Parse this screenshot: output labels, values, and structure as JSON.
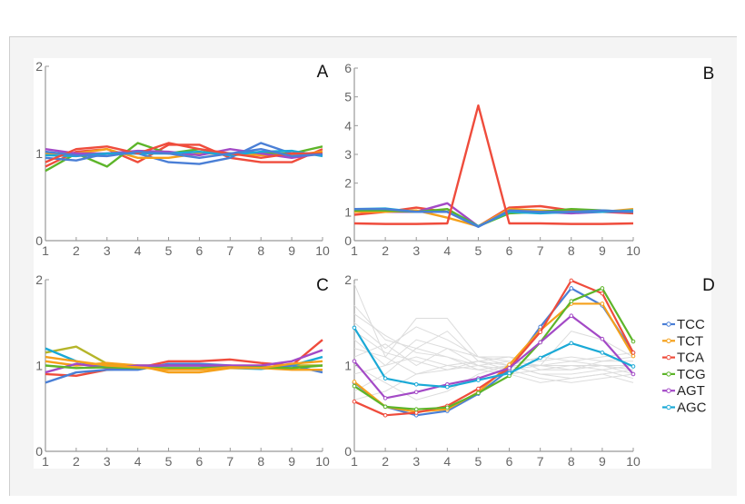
{
  "chart_data": [
    {
      "type": "line",
      "panel_label": "A",
      "x": [
        1,
        2,
        3,
        4,
        5,
        6,
        7,
        8,
        9,
        10
      ],
      "ylim": [
        0,
        2
      ],
      "yticks": [
        0,
        1,
        2
      ],
      "grid": false,
      "series": [
        {
          "color": "#ef4c3c",
          "values": [
            0.85,
            1.02,
            1.05,
            0.9,
            1.1,
            1.1,
            0.95,
            0.9,
            0.9,
            1.05
          ]
        },
        {
          "color": "#5db52a",
          "values": [
            0.8,
            1.0,
            0.85,
            1.12,
            1.0,
            1.05,
            0.98,
            1.0,
            1.0,
            1.08
          ]
        },
        {
          "color": "#4a7fd6",
          "values": [
            0.95,
            0.92,
            1.0,
            1.0,
            0.9,
            0.88,
            0.95,
            1.12,
            1.0,
            1.0
          ]
        },
        {
          "color": "#f5a01a",
          "values": [
            1.0,
            1.0,
            1.05,
            0.95,
            0.95,
            1.0,
            1.0,
            0.98,
            0.98,
            1.02
          ]
        },
        {
          "color": "#a349c6",
          "values": [
            1.05,
            1.0,
            1.0,
            1.03,
            1.02,
            0.98,
            1.05,
            1.0,
            0.95,
            1.0
          ]
        },
        {
          "color": "#1aa9d6",
          "values": [
            0.98,
            0.97,
            1.0,
            1.0,
            1.0,
            1.02,
            0.98,
            1.02,
            1.03,
            0.97
          ]
        },
        {
          "color": "#ef4c3c",
          "values": [
            0.9,
            1.05,
            1.08,
            1.0,
            1.12,
            1.05,
            1.0,
            0.95,
            1.0,
            1.0
          ]
        },
        {
          "color": "#4a7fd6",
          "values": [
            1.02,
            0.98,
            0.97,
            1.02,
            1.0,
            0.95,
            1.0,
            1.05,
            0.97,
            0.99
          ]
        }
      ]
    },
    {
      "type": "line",
      "panel_label": "B",
      "x": [
        1,
        2,
        3,
        4,
        5,
        6,
        7,
        8,
        9,
        10
      ],
      "ylim": [
        0,
        6
      ],
      "yticks": [
        0,
        1,
        2,
        3,
        4,
        5,
        6
      ],
      "grid": false,
      "series": [
        {
          "color": "#ef4c3c",
          "values": [
            0.9,
            1.0,
            1.15,
            1.0,
            0.5,
            1.15,
            1.2,
            1.05,
            1.0,
            0.95
          ]
        },
        {
          "color": "#a349c6",
          "values": [
            1.0,
            1.0,
            1.0,
            1.3,
            0.5,
            1.0,
            1.0,
            0.95,
            1.0,
            1.0
          ]
        },
        {
          "color": "#f5a01a",
          "values": [
            1.0,
            1.0,
            1.05,
            0.8,
            0.5,
            1.1,
            1.05,
            1.0,
            1.0,
            1.1
          ]
        },
        {
          "color": "#5db52a",
          "values": [
            1.05,
            1.05,
            1.0,
            1.1,
            0.5,
            0.95,
            1.0,
            1.1,
            1.05,
            1.0
          ]
        },
        {
          "color": "#1aa9d6",
          "values": [
            1.1,
            1.12,
            1.0,
            1.0,
            0.5,
            1.0,
            0.95,
            1.0,
            1.0,
            1.05
          ]
        },
        {
          "color": "#4a7fd6",
          "values": [
            1.1,
            1.1,
            1.0,
            1.0,
            0.48,
            1.05,
            1.0,
            1.0,
            1.05,
            1.0
          ]
        },
        {
          "color": "#ef4c3c",
          "values": [
            0.6,
            0.58,
            0.58,
            0.6,
            4.7,
            0.6,
            0.6,
            0.58,
            0.58,
            0.6
          ]
        }
      ]
    },
    {
      "type": "line",
      "panel_label": "C",
      "x": [
        1,
        2,
        3,
        4,
        5,
        6,
        7,
        8,
        9,
        10
      ],
      "ylim": [
        0,
        2
      ],
      "yticks": [
        0,
        1,
        2
      ],
      "grid": false,
      "series": [
        {
          "color": "#b5b52a",
          "values": [
            1.15,
            1.22,
            1.02,
            1.0,
            1.0,
            1.0,
            0.98,
            0.97,
            1.0,
            1.0
          ]
        },
        {
          "color": "#ef4c3c",
          "values": [
            0.9,
            0.88,
            0.95,
            0.97,
            1.05,
            1.05,
            1.07,
            1.03,
            1.0,
            1.3
          ]
        },
        {
          "color": "#1aa9d6",
          "values": [
            1.2,
            1.05,
            0.98,
            0.98,
            1.0,
            1.0,
            0.97,
            0.96,
            1.0,
            1.1
          ]
        },
        {
          "color": "#4a7fd6",
          "values": [
            0.8,
            0.92,
            0.95,
            0.95,
            1.02,
            1.02,
            1.0,
            0.98,
            1.0,
            0.92
          ]
        },
        {
          "color": "#f5a01a",
          "values": [
            1.05,
            1.0,
            1.03,
            1.0,
            0.92,
            0.92,
            0.97,
            0.97,
            0.95,
            0.95
          ]
        },
        {
          "color": "#a349c6",
          "values": [
            0.92,
            1.02,
            0.97,
            1.0,
            1.0,
            1.0,
            1.0,
            1.0,
            1.05,
            1.18
          ]
        },
        {
          "color": "#5db52a",
          "values": [
            1.0,
            0.97,
            0.98,
            0.97,
            0.97,
            0.97,
            0.98,
            0.98,
            0.97,
            1.0
          ]
        },
        {
          "color": "#f5a01a",
          "values": [
            1.1,
            1.05,
            1.0,
            0.98,
            0.95,
            0.95,
            0.98,
            0.97,
            1.02,
            1.05
          ]
        }
      ]
    },
    {
      "type": "line",
      "panel_label": "D",
      "x": [
        1,
        2,
        3,
        4,
        5,
        6,
        7,
        8,
        9,
        10
      ],
      "ylim": [
        0,
        2
      ],
      "yticks": [
        0,
        1,
        2
      ],
      "grid": false,
      "legend": "right",
      "background_series_color": "#dcdcdc",
      "background_series": [
        [
          1.95,
          1.1,
          1.55,
          1.55,
          1.1,
          1.1,
          0.95,
          0.95,
          1.0,
          0.9
        ],
        [
          1.7,
          1.3,
          1.2,
          1.4,
          1.05,
          1.0,
          0.9,
          0.85,
          0.9,
          0.95
        ],
        [
          1.5,
          1.2,
          1.45,
          1.3,
          1.1,
          1.05,
          1.0,
          1.0,
          0.95,
          1.0
        ],
        [
          1.3,
          1.0,
          1.1,
          1.0,
          0.95,
          1.0,
          1.0,
          1.4,
          1.3,
          1.1
        ],
        [
          1.2,
          1.1,
          0.9,
          0.95,
          1.0,
          0.9,
          0.8,
          0.85,
          0.9,
          0.8
        ],
        [
          1.0,
          0.8,
          0.6,
          0.7,
          0.9,
          1.0,
          1.1,
          1.05,
          1.0,
          1.0
        ],
        [
          0.7,
          0.9,
          1.2,
          1.1,
          1.0,
          1.05,
          1.0,
          0.95,
          1.05,
          1.1
        ],
        [
          1.1,
          1.25,
          1.0,
          1.2,
          1.1,
          1.0,
          0.9,
          0.9,
          0.95,
          0.85
        ],
        [
          0.9,
          1.0,
          1.3,
          1.2,
          1.0,
          0.95,
          0.85,
          0.8,
          0.85,
          0.9
        ],
        [
          1.4,
          1.15,
          1.05,
          0.95,
          1.05,
          1.1,
          1.05,
          1.1,
          1.05,
          1.05
        ],
        [
          0.6,
          0.7,
          0.9,
          1.0,
          1.05,
          0.95,
          1.0,
          1.05,
          1.1,
          1.15
        ],
        [
          1.6,
          1.35,
          1.15,
          1.1,
          0.95,
          0.9,
          0.95,
          1.0,
          1.0,
          0.95
        ]
      ],
      "series": [
        {
          "name": "TCC",
          "color": "#4a7fd6",
          "values": [
            0.8,
            0.52,
            0.42,
            0.47,
            0.67,
            0.95,
            1.45,
            1.9,
            1.7,
            1.15
          ]
        },
        {
          "name": "TCT",
          "color": "#f5a01a",
          "values": [
            0.81,
            0.52,
            0.46,
            0.49,
            0.69,
            1.01,
            1.41,
            1.72,
            1.72,
            1.11
          ]
        },
        {
          "name": "TCA",
          "color": "#ef4c3c",
          "values": [
            0.58,
            0.42,
            0.45,
            0.53,
            0.73,
            0.97,
            1.39,
            1.99,
            1.84,
            1.15
          ]
        },
        {
          "name": "TCG",
          "color": "#5db52a",
          "values": [
            0.76,
            0.52,
            0.49,
            0.51,
            0.68,
            0.88,
            1.27,
            1.75,
            1.9,
            1.28
          ]
        },
        {
          "name": "AGT",
          "color": "#a349c6",
          "values": [
            1.05,
            0.62,
            0.69,
            0.78,
            0.85,
            0.97,
            1.27,
            1.58,
            1.31,
            0.9
          ]
        },
        {
          "name": "AGC",
          "color": "#1aa9d6",
          "values": [
            1.44,
            0.85,
            0.78,
            0.75,
            0.83,
            0.91,
            1.09,
            1.26,
            1.15,
            0.99
          ]
        }
      ]
    }
  ]
}
